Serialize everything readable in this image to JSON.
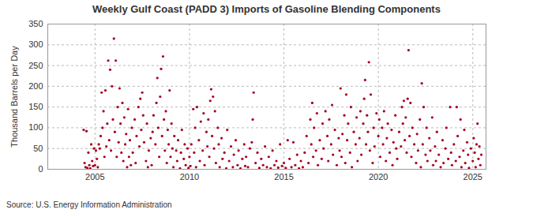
{
  "chart_data": {
    "type": "scatter",
    "title": "Weekly Gulf Coast (PADD 3) Imports of Gasoline Blending Components",
    "y_label": "Thousand Barrels per Day",
    "source": "Source: U.S. Energy Information Administration",
    "color": "#a50021",
    "marker": "circle",
    "grid": true,
    "xlim": [
      2002.5,
      2025.7
    ],
    "xticks": [
      2005,
      2010,
      2015,
      2020,
      2025
    ],
    "ylim": [
      0,
      350
    ],
    "yticks": [
      0,
      50,
      100,
      150,
      200,
      250,
      300,
      350
    ],
    "x": [
      2004.4,
      2004.45,
      2004.5,
      2004.55,
      2004.6,
      2004.65,
      2004.7,
      2004.75,
      2004.8,
      2004.85,
      2004.9,
      2004.95,
      2005,
      2005.05,
      2005.1,
      2005.15,
      2005.2,
      2005.25,
      2005.3,
      2005.35,
      2005.4,
      2005.45,
      2005.5,
      2005.55,
      2005.6,
      2005.65,
      2005.7,
      2005.75,
      2005.8,
      2005.85,
      2005.9,
      2005.95,
      2006,
      2006.05,
      2006.1,
      2006.15,
      2006.2,
      2006.25,
      2006.3,
      2006.35,
      2006.4,
      2006.45,
      2006.5,
      2006.55,
      2006.6,
      2006.65,
      2006.7,
      2006.75,
      2006.8,
      2006.85,
      2006.9,
      2006.95,
      2007,
      2007.1,
      2007.15,
      2007.2,
      2007.3,
      2007.35,
      2007.4,
      2007.45,
      2007.5,
      2007.55,
      2007.6,
      2007.7,
      2007.75,
      2007.8,
      2007.85,
      2007.95,
      2008,
      2008.05,
      2008.1,
      2008.2,
      2008.25,
      2008.3,
      2008.35,
      2008.4,
      2008.45,
      2008.5,
      2008.55,
      2008.6,
      2008.65,
      2008.7,
      2008.75,
      2008.8,
      2008.85,
      2008.9,
      2008.95,
      2009,
      2009.05,
      2009.1,
      2009.15,
      2009.2,
      2009.3,
      2009.35,
      2009.4,
      2009.5,
      2009.55,
      2009.6,
      2009.7,
      2009.75,
      2009.8,
      2009.9,
      2009.95,
      2010,
      2010.05,
      2010.1,
      2010.2,
      2010.25,
      2010.3,
      2010.35,
      2010.4,
      2010.5,
      2010.55,
      2010.6,
      2010.7,
      2010.75,
      2010.8,
      2010.9,
      2010.95,
      2011,
      2011.05,
      2011.1,
      2011.15,
      2011.2,
      2011.25,
      2011.3,
      2011.35,
      2011.4,
      2011.5,
      2011.55,
      2011.6,
      2011.7,
      2011.75,
      2011.85,
      2011.95,
      2012,
      2012.1,
      2012.2,
      2012.3,
      2012.35,
      2012.45,
      2012.55,
      2012.6,
      2012.7,
      2012.8,
      2012.9,
      2012.95,
      2013,
      2013.1,
      2013.2,
      2013.3,
      2013.35,
      2013.4,
      2013.5,
      2013.6,
      2013.7,
      2013.8,
      2013.9,
      2014,
      2014.1,
      2014.2,
      2014.3,
      2014.4,
      2014.5,
      2014.6,
      2014.7,
      2014.8,
      2014.9,
      2015,
      2015.1,
      2015.2,
      2015.3,
      2015.4,
      2015.5,
      2015.6,
      2015.7,
      2015.8,
      2015.9,
      2016,
      2016.1,
      2016.2,
      2016.3,
      2016.4,
      2016.45,
      2016.5,
      2016.55,
      2016.6,
      2016.7,
      2016.75,
      2016.8,
      2016.9,
      2017,
      2017.05,
      2017.1,
      2017.2,
      2017.3,
      2017.35,
      2017.4,
      2017.5,
      2017.55,
      2017.6,
      2017.7,
      2017.8,
      2017.9,
      2017.95,
      2018,
      2018.05,
      2018.1,
      2018.2,
      2018.25,
      2018.3,
      2018.35,
      2018.4,
      2018.5,
      2018.55,
      2018.6,
      2018.7,
      2018.8,
      2018.85,
      2018.9,
      2019,
      2019.05,
      2019.1,
      2019.2,
      2019.25,
      2019.3,
      2019.35,
      2019.4,
      2019.45,
      2019.5,
      2019.55,
      2019.6,
      2019.7,
      2019.75,
      2019.8,
      2019.9,
      2020,
      2020.05,
      2020.1,
      2020.2,
      2020.25,
      2020.3,
      2020.4,
      2020.45,
      2020.5,
      2020.6,
      2020.7,
      2020.75,
      2020.8,
      2020.9,
      2020.95,
      2021,
      2021.1,
      2021.2,
      2021.25,
      2021.3,
      2021.35,
      2021.4,
      2021.45,
      2021.5,
      2021.55,
      2021.6,
      2021.65,
      2021.7,
      2021.75,
      2021.8,
      2021.9,
      2022,
      2022.05,
      2022.1,
      2022.2,
      2022.25,
      2022.3,
      2022.35,
      2022.4,
      2022.5,
      2022.55,
      2022.6,
      2022.7,
      2022.75,
      2022.85,
      2022.9,
      2023,
      2023.05,
      2023.1,
      2023.2,
      2023.3,
      2023.4,
      2023.45,
      2023.55,
      2023.6,
      2023.7,
      2023.8,
      2023.85,
      2023.9,
      2024,
      2024.1,
      2024.15,
      2024.2,
      2024.3,
      2024.35,
      2024.4,
      2024.5,
      2024.55,
      2024.6,
      2024.7,
      2024.75,
      2024.8,
      2024.9,
      2025,
      2025.05,
      2025.1,
      2025.15,
      2025.2,
      2025.25,
      2025.3,
      2025.35,
      2025.4,
      2025.45
    ],
    "values": [
      95,
      15,
      5,
      92,
      3,
      40,
      10,
      2,
      60,
      20,
      8,
      50,
      10,
      45,
      25,
      5,
      60,
      50,
      80,
      185,
      100,
      140,
      30,
      190,
      55,
      110,
      262,
      70,
      240,
      45,
      200,
      120,
      315,
      90,
      262,
      30,
      150,
      65,
      195,
      110,
      40,
      160,
      20,
      125,
      60,
      85,
      5,
      145,
      30,
      70,
      10,
      100,
      40,
      120,
      15,
      80,
      150,
      55,
      170,
      95,
      185,
      130,
      65,
      20,
      110,
      5,
      45,
      75,
      10,
      90,
      130,
      60,
      160,
      220,
      100,
      30,
      175,
      242,
      80,
      272,
      120,
      45,
      140,
      15,
      95,
      60,
      190,
      30,
      110,
      50,
      5,
      80,
      45,
      20,
      70,
      2,
      40,
      95,
      25,
      60,
      10,
      50,
      3,
      30,
      8,
      60,
      145,
      40,
      100,
      5,
      150,
      70,
      20,
      115,
      45,
      135,
      10,
      90,
      55,
      120,
      30,
      165,
      193,
      80,
      175,
      50,
      140,
      15,
      100,
      60,
      5,
      75,
      25,
      40,
      2,
      95,
      20,
      55,
      5,
      35,
      70,
      10,
      45,
      2,
      25,
      60,
      8,
      30,
      5,
      50,
      65,
      120,
      185,
      15,
      40,
      3,
      25,
      10,
      55,
      5,
      30,
      2,
      45,
      10,
      20,
      4,
      60,
      8,
      15,
      3,
      70,
      25,
      5,
      65,
      10,
      35,
      2,
      20,
      5,
      40,
      80,
      15,
      120,
      60,
      160,
      30,
      100,
      45,
      135,
      10,
      70,
      25,
      110,
      50,
      140,
      80,
      20,
      120,
      60,
      155,
      35,
      95,
      10,
      75,
      45,
      195,
      30,
      85,
      130,
      15,
      180,
      70,
      110,
      40,
      150,
      5,
      90,
      60,
      125,
      20,
      75,
      140,
      35,
      110,
      170,
      215,
      60,
      130,
      90,
      258,
      45,
      180,
      15,
      100,
      55,
      135,
      80,
      120,
      30,
      100,
      60,
      140,
      20,
      75,
      110,
      40,
      95,
      10,
      65,
      130,
      50,
      25,
      90,
      55,
      150,
      110,
      165,
      70,
      125,
      40,
      170,
      287,
      80,
      160,
      30,
      100,
      60,
      15,
      85,
      45,
      120,
      5,
      207,
      60,
      150,
      35,
      100,
      20,
      75,
      45,
      125,
      10,
      55,
      20,
      90,
      35,
      5,
      70,
      15,
      50,
      100,
      25,
      150,
      40,
      10,
      60,
      20,
      150,
      80,
      30,
      120,
      5,
      45,
      95,
      15,
      65,
      35,
      3,
      50,
      20,
      75,
      40,
      5,
      60,
      110,
      25,
      55,
      10,
      35
    ]
  }
}
